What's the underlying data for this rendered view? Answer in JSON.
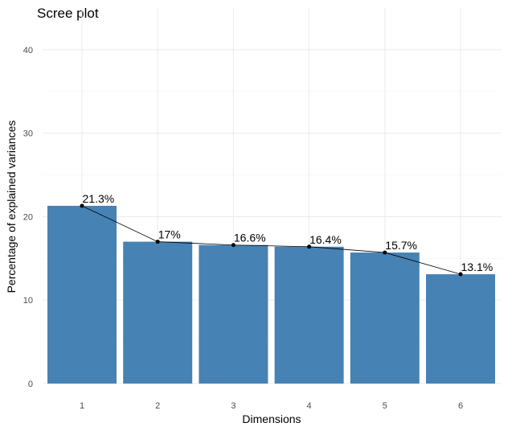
{
  "chart_data": {
    "type": "bar",
    "title": "Scree plot",
    "xlabel": "Dimensions",
    "ylabel": "Percentage of explained variances",
    "categories": [
      "1",
      "2",
      "3",
      "4",
      "5",
      "6"
    ],
    "values": [
      21.3,
      17.0,
      16.6,
      16.4,
      15.7,
      13.1
    ],
    "data_labels": [
      "21.3%",
      "17%",
      "16.6%",
      "16.4%",
      "15.7%",
      "13.1%"
    ],
    "ylim": [
      0,
      45
    ],
    "yticks": [
      0,
      10,
      20,
      30,
      40
    ],
    "grid": true,
    "line_overlay": true,
    "colors": {
      "bar": "#4682B4",
      "line": "#000000",
      "point": "#000000"
    }
  }
}
